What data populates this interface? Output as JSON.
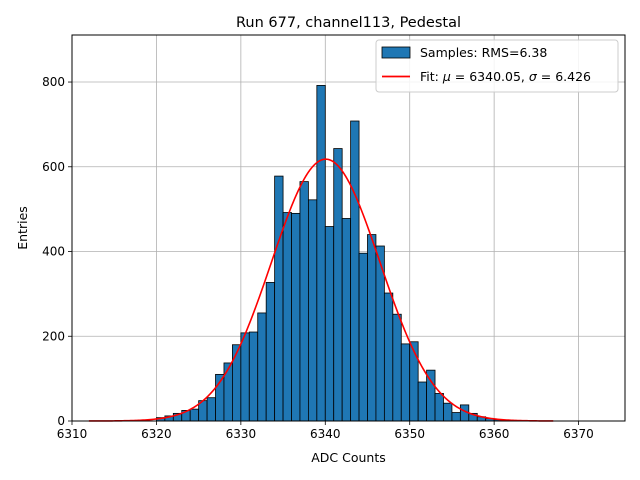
{
  "chart_data": {
    "type": "bar",
    "title": "Run 677, channel113, Pedestal",
    "xlabel": "ADC Counts",
    "ylabel": "Entries",
    "xlim": [
      6310,
      6375.5
    ],
    "ylim": [
      0,
      911
    ],
    "grid": true,
    "legend_position": "top-right",
    "x_ticks": [
      6310,
      6320,
      6330,
      6340,
      6350,
      6360,
      6370
    ],
    "y_ticks": [
      0,
      200,
      400,
      600,
      800
    ],
    "histogram": {
      "name": "Samples: RMS=6.38",
      "color": "#1f77b4",
      "bin_width": 1,
      "bin_starts": [
        6320,
        6321,
        6322,
        6323,
        6324,
        6325,
        6326,
        6327,
        6328,
        6329,
        6330,
        6331,
        6332,
        6333,
        6334,
        6335,
        6336,
        6337,
        6338,
        6339,
        6340,
        6341,
        6342,
        6343,
        6344,
        6345,
        6346,
        6347,
        6348,
        6349,
        6350,
        6351,
        6352,
        6353,
        6354,
        6355,
        6356,
        6357,
        6358,
        6359,
        6360,
        6361
      ],
      "values": [
        8,
        12,
        18,
        25,
        28,
        48,
        55,
        110,
        137,
        180,
        208,
        210,
        255,
        327,
        578,
        492,
        490,
        565,
        522,
        792,
        459,
        643,
        478,
        708,
        396,
        440,
        413,
        302,
        252,
        182,
        187,
        92,
        120,
        65,
        42,
        20,
        38,
        18,
        10,
        6,
        3,
        2
      ]
    },
    "fit": {
      "name": "Fit: μ = 6340.05, σ = 6.426",
      "label_prefix": "Fit: ",
      "mu_symbol": "μ",
      "mu_value": " = 6340.05, ",
      "sigma_symbol": "σ",
      "sigma_value": " = 6.426",
      "color": "#ff0000",
      "mu": 6340.05,
      "sigma": 6.426,
      "amplitude": 618,
      "x_range": [
        6312,
        6367
      ]
    }
  }
}
